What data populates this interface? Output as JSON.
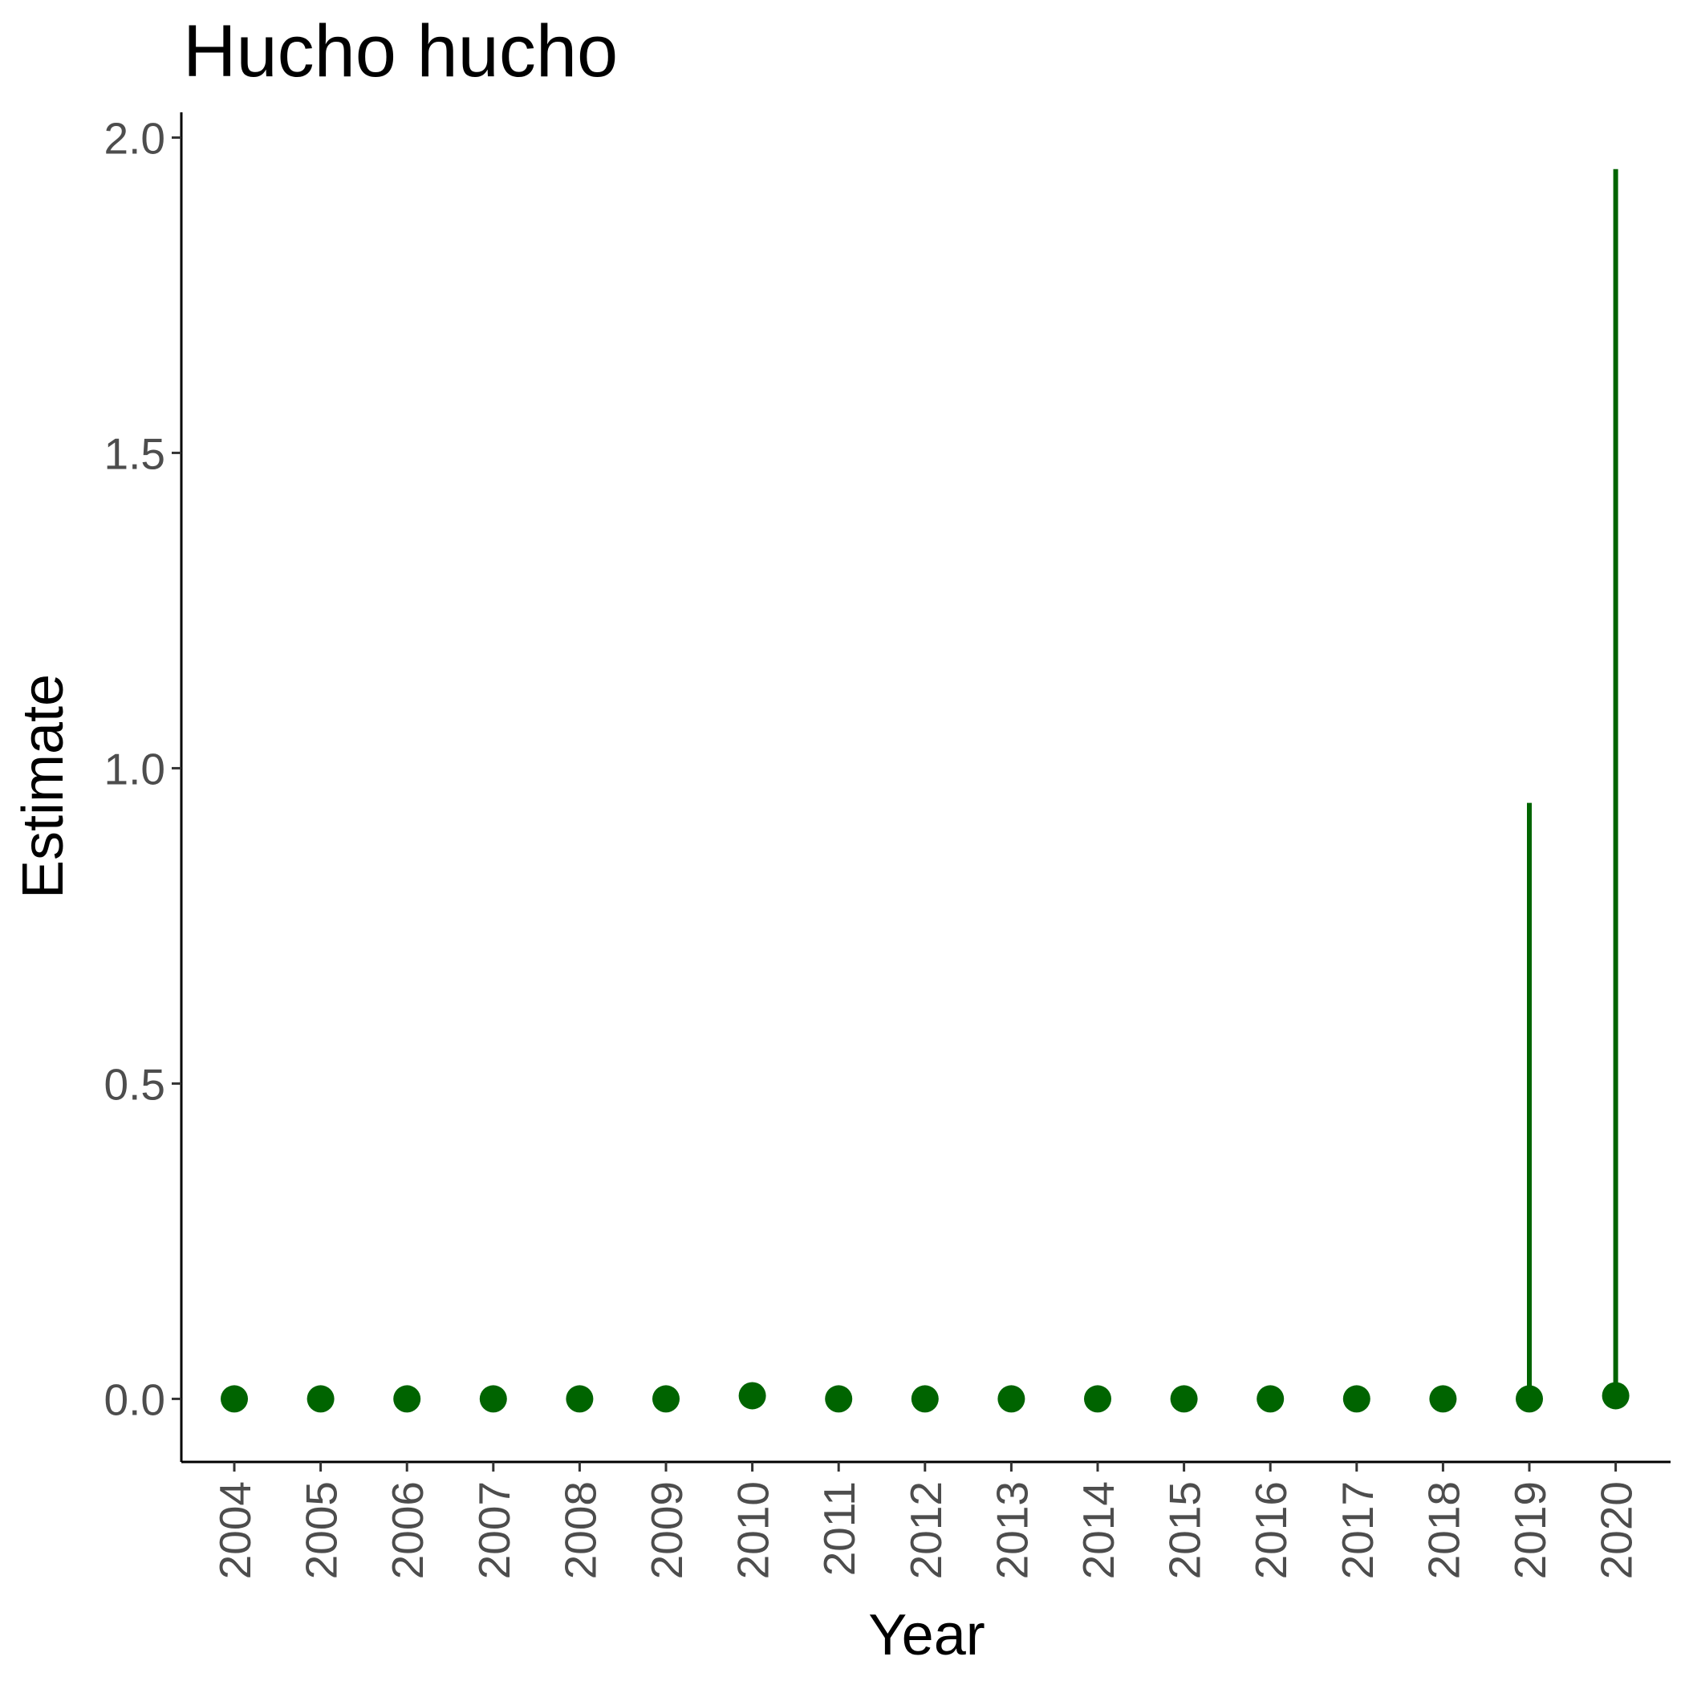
{
  "chart_data": {
    "type": "scatter",
    "title": "Hucho hucho",
    "xlabel": "Year",
    "ylabel": "Estimate",
    "categories": [
      "2004",
      "2005",
      "2006",
      "2007",
      "2008",
      "2009",
      "2010",
      "2011",
      "2012",
      "2013",
      "2014",
      "2015",
      "2016",
      "2017",
      "2018",
      "2019",
      "2020"
    ],
    "series": [
      {
        "values": [
          0,
          0,
          0,
          0,
          0,
          0,
          0.005,
          0,
          0,
          0,
          0,
          0,
          0,
          0,
          0,
          0,
          0.005
        ],
        "lower": [
          0,
          0,
          0,
          0,
          0,
          0,
          0,
          0,
          0,
          0,
          0,
          0,
          0,
          0,
          0,
          0,
          0
        ],
        "upper": [
          0,
          0,
          0,
          0,
          0,
          0,
          0,
          0,
          0,
          0,
          0,
          0,
          0,
          0,
          0,
          0.945,
          1.95
        ]
      }
    ],
    "yticks": [
      "0.0",
      "0.5",
      "1.0",
      "1.5",
      "2.0"
    ],
    "ylim": [
      -0.1,
      2.04
    ],
    "grid": false,
    "colors": {
      "series": "#006400",
      "axis": "#000000",
      "tick_label": "#4d4d4d"
    }
  }
}
